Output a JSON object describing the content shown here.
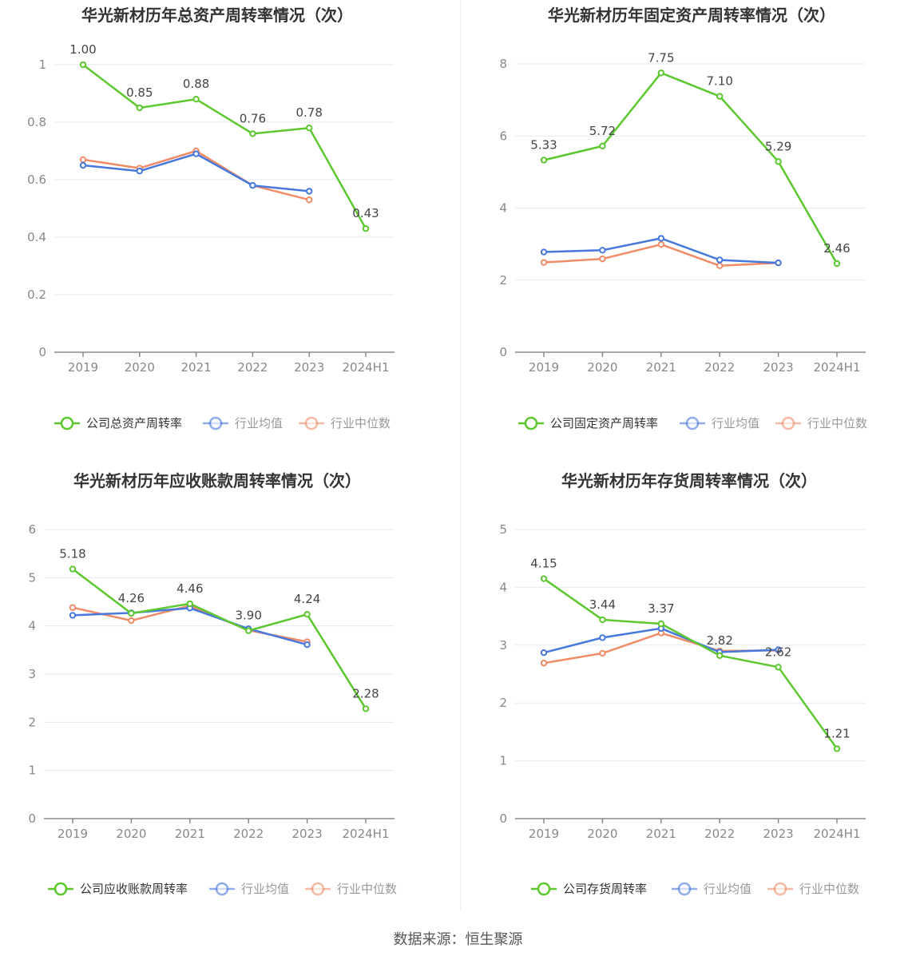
{
  "footer": {
    "source": "数据来源：恒生聚源"
  },
  "chart_data": [
    {
      "type": "line",
      "title": "华光新材历年总资产周转率情况（次）",
      "categories": [
        "2019",
        "2020",
        "2021",
        "2022",
        "2023",
        "2024H1"
      ],
      "yticks": [
        "0",
        "0.2",
        "0.4",
        "0.6",
        "0.8",
        "1"
      ],
      "ylim": [
        0,
        1
      ],
      "grid": true,
      "legend_position": "bottom",
      "series": [
        {
          "name": "公司总资产周转率",
          "color": "#5cc72e",
          "labeled": true,
          "values": [
            1.0,
            0.85,
            0.88,
            0.76,
            0.78,
            0.43
          ],
          "labels": [
            "1.00",
            "0.85",
            "0.88",
            "0.76",
            "0.78",
            "0.43"
          ]
        },
        {
          "name": "行业均值",
          "color": "#4678de",
          "labeled": false,
          "values": [
            0.65,
            0.63,
            0.69,
            0.58,
            0.56,
            null
          ]
        },
        {
          "name": "行业中位数",
          "color": "#f08b68",
          "labeled": false,
          "values": [
            0.67,
            0.64,
            0.7,
            0.58,
            0.53,
            null
          ]
        }
      ]
    },
    {
      "type": "line",
      "title": "华光新材历年固定资产周转率情况（次）",
      "categories": [
        "2019",
        "2020",
        "2021",
        "2022",
        "2023",
        "2024H1"
      ],
      "yticks": [
        "0",
        "2",
        "4",
        "6",
        "8"
      ],
      "ylim": [
        0,
        8
      ],
      "grid": true,
      "legend_position": "bottom",
      "series": [
        {
          "name": "公司固定资产周转率",
          "color": "#5cc72e",
          "labeled": true,
          "values": [
            5.33,
            5.72,
            7.75,
            7.1,
            5.29,
            2.46
          ],
          "labels": [
            "5.33",
            "5.72",
            "7.75",
            "7.10",
            "5.29",
            "2.46"
          ]
        },
        {
          "name": "行业均值",
          "color": "#4678de",
          "labeled": false,
          "values": [
            2.78,
            2.83,
            3.16,
            2.56,
            2.48,
            null
          ]
        },
        {
          "name": "行业中位数",
          "color": "#f08b68",
          "labeled": false,
          "values": [
            2.49,
            2.59,
            2.99,
            2.4,
            2.48,
            null
          ]
        }
      ]
    },
    {
      "type": "line",
      "title": "华光新材历年应收账款周转率情况（次）",
      "categories": [
        "2019",
        "2020",
        "2021",
        "2022",
        "2023",
        "2024H1"
      ],
      "yticks": [
        "0",
        "1",
        "2",
        "3",
        "4",
        "5",
        "6"
      ],
      "ylim": [
        0,
        6
      ],
      "grid": true,
      "legend_position": "bottom",
      "series": [
        {
          "name": "公司应收账款周转率",
          "color": "#5cc72e",
          "labeled": true,
          "values": [
            5.18,
            4.26,
            4.46,
            3.9,
            4.24,
            2.28
          ],
          "labels": [
            "5.18",
            "4.26",
            "4.46",
            "3.90",
            "4.24",
            "2.28"
          ]
        },
        {
          "name": "行业均值",
          "color": "#4678de",
          "labeled": false,
          "values": [
            4.22,
            4.27,
            4.37,
            3.94,
            3.61,
            null
          ]
        },
        {
          "name": "行业中位数",
          "color": "#f08b68",
          "labeled": false,
          "values": [
            4.38,
            4.11,
            4.42,
            3.91,
            3.67,
            null
          ]
        }
      ]
    },
    {
      "type": "line",
      "title": "华光新材历年存货周转率情况（次）",
      "categories": [
        "2019",
        "2020",
        "2021",
        "2022",
        "2023",
        "2024H1"
      ],
      "yticks": [
        "0",
        "1",
        "2",
        "3",
        "4",
        "5"
      ],
      "ylim": [
        0,
        5
      ],
      "grid": true,
      "legend_position": "bottom",
      "series": [
        {
          "name": "公司存货周转率",
          "color": "#5cc72e",
          "labeled": true,
          "values": [
            4.15,
            3.44,
            3.37,
            2.82,
            2.62,
            1.21
          ],
          "labels": [
            "4.15",
            "3.44",
            "3.37",
            "2.82",
            "2.62",
            "1.21"
          ]
        },
        {
          "name": "行业均值",
          "color": "#4678de",
          "labeled": false,
          "values": [
            2.87,
            3.13,
            3.29,
            2.88,
            2.92,
            null
          ]
        },
        {
          "name": "行业中位数",
          "color": "#f08b68",
          "labeled": false,
          "values": [
            2.69,
            2.86,
            3.21,
            2.9,
            2.91,
            null
          ]
        }
      ]
    }
  ]
}
